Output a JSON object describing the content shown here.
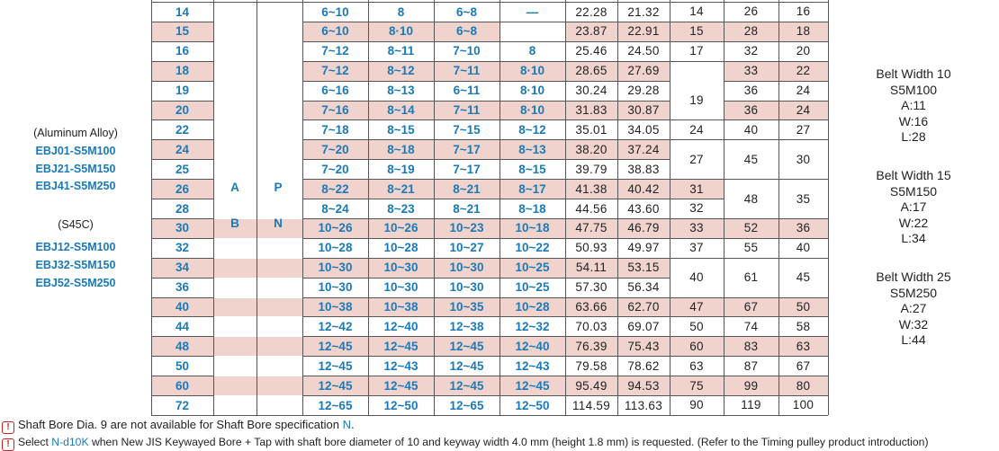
{
  "side_labels": {
    "material1": "(Aluminum Alloy)",
    "models1": [
      "EBJ01-S5M100",
      "EBJ21-S5M150",
      "EBJ41-S5M250"
    ],
    "material2": "(S45C)",
    "models2": [
      "EBJ12-S5M100",
      "EBJ32-S5M150",
      "EBJ52-S5M250"
    ]
  },
  "type_letters": {
    "A": "A",
    "B": "B",
    "P": "P",
    "N": "N"
  },
  "rows": [
    {
      "d": "14",
      "c1": "6~10",
      "c2": "8",
      "c3": "6~8",
      "c4": "—",
      "v1": "22.28",
      "v2": "21.32"
    },
    {
      "d": "15",
      "c1": "6~10",
      "c2": "8·10",
      "c3": "6~8",
      "c4": "",
      "v1": "23.87",
      "v2": "22.91"
    },
    {
      "d": "16",
      "c1": "7~12",
      "c2": "8~11",
      "c3": "7~10",
      "c4": "8",
      "v1": "25.46",
      "v2": "24.50"
    },
    {
      "d": "18",
      "c1": "7~12",
      "c2": "8~12",
      "c3": "7~11",
      "c4": "8·10",
      "v1": "28.65",
      "v2": "27.69"
    },
    {
      "d": "19",
      "c1": "6~16",
      "c2": "8~13",
      "c3": "6~11",
      "c4": "8·10",
      "v1": "30.24",
      "v2": "29.28"
    },
    {
      "d": "20",
      "c1": "7~16",
      "c2": "8~14",
      "c3": "7~11",
      "c4": "8·10",
      "v1": "31.83",
      "v2": "30.87"
    },
    {
      "d": "22",
      "c1": "7~18",
      "c2": "8~15",
      "c3": "7~15",
      "c4": "8~12",
      "v1": "35.01",
      "v2": "34.05"
    },
    {
      "d": "24",
      "c1": "7~20",
      "c2": "8~18",
      "c3": "7~17",
      "c4": "8~13",
      "v1": "38.20",
      "v2": "37.24"
    },
    {
      "d": "25",
      "c1": "7~20",
      "c2": "8~19",
      "c3": "7~17",
      "c4": "8~15",
      "v1": "39.79",
      "v2": "38.83"
    },
    {
      "d": "26",
      "c1": "8~22",
      "c2": "8~21",
      "c3": "8~21",
      "c4": "8~17",
      "v1": "41.38",
      "v2": "40.42"
    },
    {
      "d": "28",
      "c1": "8~24",
      "c2": "8~23",
      "c3": "8~21",
      "c4": "8~18",
      "v1": "44.56",
      "v2": "43.60"
    },
    {
      "d": "30",
      "c1": "10~26",
      "c2": "10~26",
      "c3": "10~23",
      "c4": "10~18",
      "v1": "47.75",
      "v2": "46.79"
    },
    {
      "d": "32",
      "c1": "10~28",
      "c2": "10~28",
      "c3": "10~27",
      "c4": "10~22",
      "v1": "50.93",
      "v2": "49.97"
    },
    {
      "d": "34",
      "c1": "10~30",
      "c2": "10~30",
      "c3": "10~30",
      "c4": "10~25",
      "v1": "54.11",
      "v2": "53.15"
    },
    {
      "d": "36",
      "c1": "10~30",
      "c2": "10~30",
      "c3": "10~30",
      "c4": "10~25",
      "v1": "57.30",
      "v2": "56.34"
    },
    {
      "d": "40",
      "c1": "10~38",
      "c2": "10~38",
      "c3": "10~35",
      "c4": "10~28",
      "v1": "63.66",
      "v2": "62.70"
    },
    {
      "d": "44",
      "c1": "12~42",
      "c2": "12~40",
      "c3": "12~38",
      "c4": "12~32",
      "v1": "70.03",
      "v2": "69.07"
    },
    {
      "d": "48",
      "c1": "12~45",
      "c2": "12~45",
      "c3": "12~45",
      "c4": "12~40",
      "v1": "76.39",
      "v2": "75.43"
    },
    {
      "d": "50",
      "c1": "12~45",
      "c2": "12~43",
      "c3": "12~45",
      "c4": "12~43",
      "v1": "79.58",
      "v2": "78.62"
    },
    {
      "d": "60",
      "c1": "12~45",
      "c2": "12~45",
      "c3": "12~45",
      "c4": "12~45",
      "v1": "95.49",
      "v2": "94.53"
    },
    {
      "d": "72",
      "c1": "12~65",
      "c2": "12~50",
      "c3": "12~65",
      "c4": "12~50",
      "v1": "114.59",
      "v2": "113.63"
    }
  ],
  "col_L": [
    {
      "text": "14",
      "rows": [
        0
      ]
    },
    {
      "text": "15",
      "rows": [
        1
      ]
    },
    {
      "text": "17",
      "rows": [
        2
      ]
    },
    {
      "text": "",
      "rows": [
        3
      ]
    },
    {
      "text": "19",
      "rows": [
        4,
        5
      ]
    },
    {
      "text": "24",
      "rows": [
        6
      ]
    },
    {
      "text": "27",
      "rows": [
        7,
        8
      ]
    },
    {
      "text": "31",
      "rows": [
        9
      ]
    },
    {
      "text": "32",
      "rows": [
        10
      ]
    },
    {
      "text": "33",
      "rows": [
        11
      ]
    },
    {
      "text": "37",
      "rows": [
        12
      ]
    },
    {
      "text": "40",
      "rows": [
        13,
        14
      ]
    },
    {
      "text": "47",
      "rows": [
        15
      ]
    },
    {
      "text": "50",
      "rows": [
        16
      ]
    },
    {
      "text": "60",
      "rows": [
        17
      ]
    },
    {
      "text": "63",
      "rows": [
        18
      ]
    },
    {
      "text": "75",
      "rows": [
        19
      ]
    },
    {
      "text": "90",
      "rows": [
        20
      ]
    }
  ],
  "col_M": [
    {
      "text": "26",
      "rows": [
        0
      ]
    },
    {
      "text": "28",
      "rows": [
        1
      ]
    },
    {
      "text": "32",
      "rows": [
        2
      ]
    },
    {
      "text": "33",
      "rows": [
        3
      ]
    },
    {
      "text": "36",
      "rows": [
        4
      ]
    },
    {
      "text": "36",
      "rows": [
        5
      ]
    },
    {
      "text": "40",
      "rows": [
        6
      ]
    },
    {
      "text": "45",
      "rows": [
        7,
        8
      ]
    },
    {
      "text": "48",
      "rows": [
        9,
        10
      ]
    },
    {
      "text": "52",
      "rows": [
        11
      ]
    },
    {
      "text": "55",
      "rows": [
        12
      ]
    },
    {
      "text": "61",
      "rows": [
        13,
        14
      ]
    },
    {
      "text": "67",
      "rows": [
        15
      ]
    },
    {
      "text": "74",
      "rows": [
        16
      ]
    },
    {
      "text": "83",
      "rows": [
        17
      ]
    },
    {
      "text": "87",
      "rows": [
        18
      ]
    },
    {
      "text": "99",
      "rows": [
        19
      ]
    },
    {
      "text": "119",
      "rows": [
        20
      ]
    }
  ],
  "col_N": [
    {
      "text": "16",
      "rows": [
        0
      ]
    },
    {
      "text": "18",
      "rows": [
        1
      ]
    },
    {
      "text": "20",
      "rows": [
        2
      ]
    },
    {
      "text": "22",
      "rows": [
        3
      ]
    },
    {
      "text": "24",
      "rows": [
        4
      ]
    },
    {
      "text": "24",
      "rows": [
        5
      ]
    },
    {
      "text": "27",
      "rows": [
        6
      ]
    },
    {
      "text": "30",
      "rows": [
        7,
        8
      ]
    },
    {
      "text": "35",
      "rows": [
        9,
        10
      ]
    },
    {
      "text": "36",
      "rows": [
        11
      ]
    },
    {
      "text": "40",
      "rows": [
        12
      ]
    },
    {
      "text": "45",
      "rows": [
        13,
        14
      ]
    },
    {
      "text": "50",
      "rows": [
        15
      ]
    },
    {
      "text": "58",
      "rows": [
        16
      ]
    },
    {
      "text": "63",
      "rows": [
        17
      ]
    },
    {
      "text": "67",
      "rows": [
        18
      ]
    },
    {
      "text": "80",
      "rows": [
        19
      ]
    },
    {
      "text": "100",
      "rows": [
        20
      ]
    }
  ],
  "belts": [
    {
      "title": "Belt Width 10",
      "model": "S5M100",
      "a": "A:11",
      "w": "W:16",
      "l": "L:28"
    },
    {
      "title": "Belt Width 15",
      "model": "S5M150",
      "a": "A:17",
      "w": "W:22",
      "l": "L:34"
    },
    {
      "title": "Belt Width 25",
      "model": "S5M250",
      "a": "A:27",
      "w": "W:32",
      "l": "L:44"
    }
  ],
  "notes": {
    "icon": "!",
    "n1_pre": "Shaft Bore Dia. 9 are not available for Shaft Bore specification ",
    "n1_hl": "N",
    "n1_post": ".",
    "n2_pre": "Select ",
    "n2_hl": "N-d10K",
    "n2_post": " when New JIS Keywayed Bore + Tap with shaft bore diameter of 10 and keyway width 4.0 mm (height 1.8 mm) is requested. (Refer to the Timing pulley product introduction)"
  }
}
